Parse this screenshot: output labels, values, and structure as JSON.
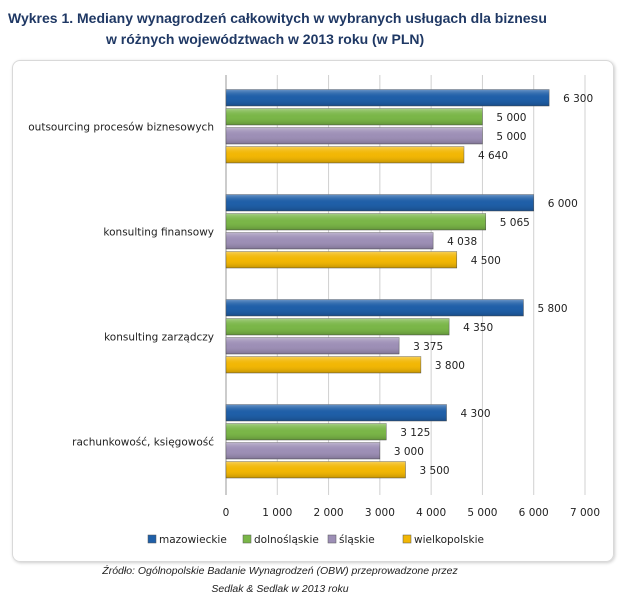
{
  "chart_data": {
    "type": "bar",
    "orientation": "horizontal",
    "title": [
      "Wykres 1. Mediany wynagrodzeń całkowitych w wybranych usługach dla biznesu",
      "w różnych województwach w 2013 roku (w PLN)"
    ],
    "categories": [
      "outsourcing procesów biznesowych",
      "konsulting finansowy",
      "konsulting zarządczy",
      "rachunkowość, księgowość"
    ],
    "series": [
      {
        "name": "mazowieckie",
        "color": "#1f5fa8",
        "values": [
          6300,
          6000,
          5800,
          4300
        ]
      },
      {
        "name": "dolnośląskie",
        "color": "#7ab648",
        "values": [
          5000,
          5065,
          4350,
          3125
        ]
      },
      {
        "name": "śląskie",
        "color": "#9d8fb6",
        "values": [
          5000,
          4038,
          3375,
          3000
        ]
      },
      {
        "name": "wielkopolskie",
        "color": "#f2b705",
        "values": [
          4640,
          4500,
          3800,
          3500
        ]
      }
    ],
    "data_labels": [
      [
        "6 300",
        "6 000",
        "5 800",
        "4 300"
      ],
      [
        "5 000",
        "5 065",
        "4 350",
        "3 125"
      ],
      [
        "5 000",
        "4 038",
        "3 375",
        "3 000"
      ],
      [
        "4 640",
        "4 500",
        "3 800",
        "3 500"
      ]
    ],
    "xlim": [
      0,
      7000
    ],
    "x_ticks": [
      "0",
      "1 000",
      "2 000",
      "3 000",
      "4 000",
      "5 000",
      "6 000",
      "7 000"
    ],
    "grid": true,
    "legend": "bottom"
  },
  "source": [
    "Źródło: Ogólnopolskie Badanie Wynagrodzeń (OBW) przeprowadzone przez",
    "Sedlak & Sedlak w 2013 roku"
  ]
}
